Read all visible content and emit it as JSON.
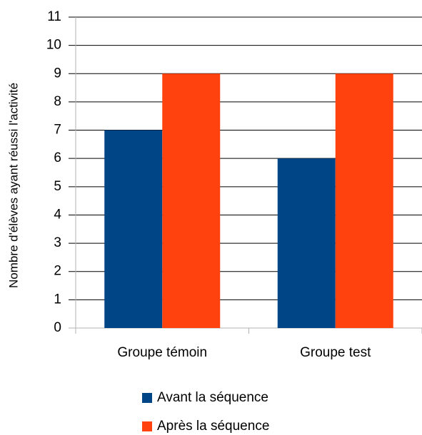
{
  "chart_data": {
    "type": "bar",
    "y_label": "Nombre d'élèves ayant réussi l'activité",
    "categories": [
      "Groupe témoin",
      "Groupe test"
    ],
    "series": [
      {
        "name": "Avant la séquence",
        "color": "#004586",
        "values": [
          7,
          6
        ]
      },
      {
        "name": "Après la séquence",
        "color": "#ff420e",
        "values": [
          9,
          9
        ]
      }
    ],
    "ylim": [
      0,
      11
    ],
    "yticks": [
      0,
      1,
      2,
      3,
      4,
      5,
      6,
      7,
      8,
      9,
      10,
      11
    ],
    "grid": true,
    "legend": "bottom"
  }
}
